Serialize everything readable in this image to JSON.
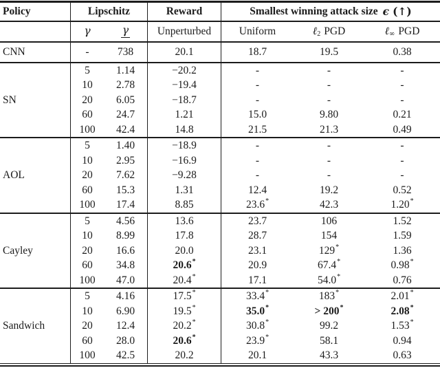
{
  "colors": {
    "background": "#ffffff",
    "text": "#1b1b1b",
    "rule": "#1b1b1b"
  },
  "table": {
    "header": {
      "policy": "Policy",
      "lipschitz": "Lipschitz",
      "reward": "Reward",
      "attack_prefix": "Smallest winning attack size",
      "attack_epsilon": "ϵ",
      "attack_arrow": "(↑)"
    },
    "subheader": {
      "gamma": "γ",
      "gamma_lower": "γ",
      "unperturbed": "Unperturbed",
      "uniform": "Uniform",
      "l2_symbol": "ℓ",
      "l2_sub": "2",
      "l2_label": "PGD",
      "linf_symbol": "ℓ",
      "linf_sub": "∞",
      "linf_label": "PGD"
    },
    "sections": [
      {
        "policy": "CNN",
        "rows": [
          [
            "-",
            "738",
            "20.1",
            "18.7",
            "19.5",
            "0.38"
          ]
        ]
      },
      {
        "policy": "SN",
        "rows": [
          [
            "5",
            "1.14",
            "−20.2",
            "-",
            "-",
            "-"
          ],
          [
            "10",
            "2.78",
            "−19.4",
            "-",
            "-",
            "-"
          ],
          [
            "20",
            "6.05",
            "−18.7",
            "-",
            "-",
            "-"
          ],
          [
            "60",
            "24.7",
            "1.21",
            "15.0",
            "9.80",
            "0.21"
          ],
          [
            "100",
            "42.4",
            "14.8",
            "21.5",
            "21.3",
            "0.49"
          ]
        ]
      },
      {
        "policy": "AOL",
        "rows": [
          [
            "5",
            "1.40",
            "−18.9",
            "-",
            "-",
            "-"
          ],
          [
            "10",
            "2.95",
            "−16.9",
            "-",
            "-",
            "-"
          ],
          [
            "20",
            "7.62",
            "−9.28",
            "-",
            "-",
            "-"
          ],
          [
            "60",
            "15.3",
            "1.31",
            "12.4",
            "19.2",
            "0.52"
          ],
          [
            "100",
            "17.4",
            "8.85",
            {
              "v": "23.6",
              "star": true
            },
            "42.3",
            {
              "v": "1.20",
              "star": true
            }
          ]
        ]
      },
      {
        "policy": "Cayley",
        "rows": [
          [
            "5",
            "4.56",
            "13.6",
            "23.7",
            "106",
            "1.52"
          ],
          [
            "10",
            "8.99",
            "17.8",
            "28.7",
            "154",
            "1.59"
          ],
          [
            "20",
            "16.6",
            "20.0",
            "23.1",
            {
              "v": "129",
              "star": true
            },
            "1.36"
          ],
          [
            "60",
            "34.8",
            {
              "v": "20.6",
              "star": true,
              "bold": true
            },
            "20.9",
            {
              "v": "67.4",
              "star": true
            },
            {
              "v": "0.98",
              "star": true
            }
          ],
          [
            "100",
            "47.0",
            {
              "v": "20.4",
              "star": true
            },
            "17.1",
            {
              "v": "54.0",
              "star": true
            },
            "0.76"
          ]
        ]
      },
      {
        "policy": "Sandwich",
        "rows": [
          [
            "5",
            "4.16",
            {
              "v": "17.5",
              "star": true
            },
            {
              "v": "33.4",
              "star": true
            },
            {
              "v": "183",
              "star": true
            },
            {
              "v": "2.01",
              "star": true
            }
          ],
          [
            "10",
            "6.90",
            {
              "v": "19.5",
              "star": true
            },
            {
              "v": "35.0",
              "star": true,
              "bold": true
            },
            {
              "v": "> 200",
              "star": true,
              "bold": true
            },
            {
              "v": "2.08",
              "star": true,
              "bold": true
            }
          ],
          [
            "20",
            "12.4",
            {
              "v": "20.2",
              "star": true
            },
            {
              "v": "30.8",
              "star": true
            },
            "99.2",
            {
              "v": "1.53",
              "star": true
            }
          ],
          [
            "60",
            "28.0",
            {
              "v": "20.6",
              "star": true,
              "bold": true
            },
            {
              "v": "23.9",
              "star": true
            },
            "58.1",
            "0.94"
          ],
          [
            "100",
            "42.5",
            "20.2",
            "20.1",
            "43.3",
            "0.63"
          ]
        ]
      }
    ]
  }
}
